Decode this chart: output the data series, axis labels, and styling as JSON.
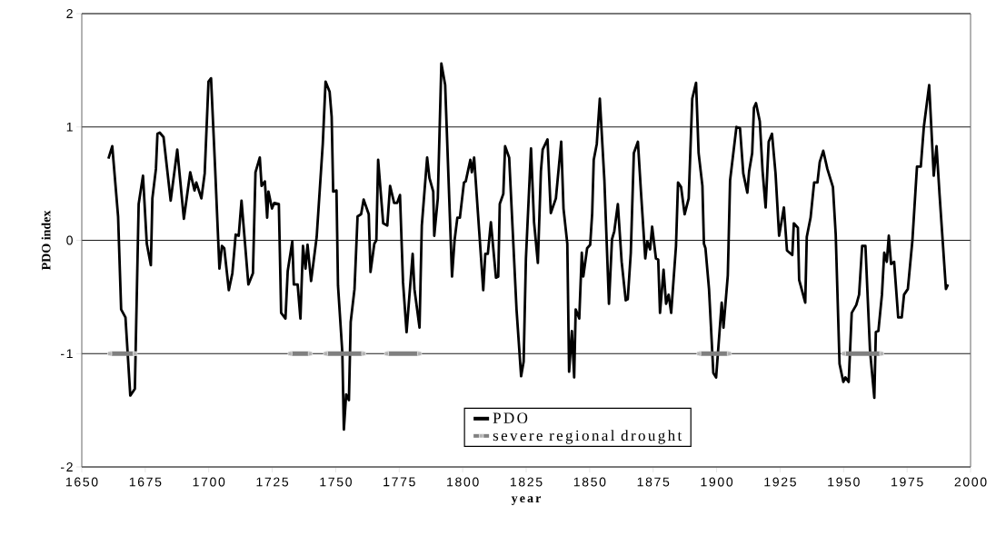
{
  "chart_data": {
    "type": "line",
    "xlabel": "year",
    "ylabel": "PDO index",
    "xlim": [
      1650,
      2000
    ],
    "ylim": [
      -2,
      2
    ],
    "xticks": [
      1650,
      1675,
      1700,
      1725,
      1750,
      1775,
      1800,
      1825,
      1850,
      1875,
      1900,
      1925,
      1950,
      1975,
      2000
    ],
    "yticks": [
      -2,
      -1,
      0,
      1,
      2
    ],
    "grid": "y",
    "legend": "bottom",
    "series": [
      {
        "name": "PDO",
        "color": "#000000",
        "x": [
          1660.5,
          1662.0,
          1664.3,
          1665.5,
          1667.2,
          1669.1,
          1670.9,
          1672.4,
          1674.1,
          1675.6,
          1677.2,
          1677.8,
          1679.2,
          1679.8,
          1680.7,
          1682.2,
          1685.0,
          1687.6,
          1690.2,
          1692.7,
          1694.4,
          1695.1,
          1697.1,
          1698.4,
          1699.9,
          1700.9,
          1702.5,
          1704.2,
          1705.2,
          1706.1,
          1707.9,
          1709.3,
          1710.6,
          1711.8,
          1712.9,
          1715.6,
          1717.4,
          1718.4,
          1720.1,
          1720.8,
          1722.1,
          1723.0,
          1723.5,
          1724.9,
          1725.8,
          1727.6,
          1728.5,
          1730.2,
          1731.1,
          1732.9,
          1733.5,
          1735.0,
          1736.1,
          1737.1,
          1738.1,
          1738.9,
          1740.3,
          1742.5,
          1744.9,
          1746.0,
          1747.6,
          1748.4,
          1749.0,
          1750.3,
          1750.9,
          1752.6,
          1753.2,
          1754.1,
          1755.2,
          1755.9,
          1757.4,
          1758.6,
          1760.0,
          1761.0,
          1763.0,
          1763.7,
          1765.2,
          1766.0,
          1766.7,
          1768.7,
          1770.3,
          1771.4,
          1773.0,
          1774.2,
          1775.3,
          1776.5,
          1777.9,
          1780.3,
          1781.0,
          1783.0,
          1783.9,
          1786.0,
          1786.9,
          1788.4,
          1788.8,
          1790.2,
          1791.6,
          1793.1,
          1795.8,
          1796.8,
          1797.9,
          1798.9,
          1800.5,
          1801.2,
          1803.0,
          1803.6,
          1804.5,
          1808.1,
          1808.9,
          1809.9,
          1811.1,
          1813.1,
          1814.0,
          1814.6,
          1816.0,
          1816.7,
          1818.3,
          1821.2,
          1823.0,
          1824.0,
          1824.9,
          1826.9,
          1828.1,
          1829.6,
          1830.8,
          1831.5,
          1833.4,
          1834.7,
          1836.7,
          1838.8,
          1839.7,
          1841.2,
          1841.9,
          1843.0,
          1843.9,
          1844.5,
          1845.9,
          1846.9,
          1847.5,
          1849.0,
          1850.2,
          1851.0,
          1851.6,
          1852.8,
          1854.0,
          1855.8,
          1857.6,
          1858.8,
          1859.7,
          1861.1,
          1862.6,
          1864.2,
          1865.0,
          1866.2,
          1867.4,
          1869.0,
          1870.2,
          1871.9,
          1872.7,
          1873.8,
          1874.6,
          1876.1,
          1877.0,
          1877.7,
          1879.1,
          1880.1,
          1881.1,
          1882.1,
          1884.0,
          1884.8,
          1886.0,
          1887.4,
          1889.0,
          1890.4,
          1891.9,
          1892.9,
          1894.4,
          1895.0,
          1895.6,
          1897.0,
          1898.7,
          1899.8,
          1902.0,
          1902.7,
          1904.4,
          1905.3,
          1907.8,
          1909.2,
          1910.5,
          1912.1,
          1912.8,
          1914.0,
          1914.7,
          1915.5,
          1917.0,
          1918.1,
          1919.3,
          1920.5,
          1921.8,
          1923.2,
          1924.6,
          1926.5,
          1927.7,
          1929.8,
          1930.4,
          1932.0,
          1932.5,
          1934.9,
          1935.5,
          1937.0,
          1938.4,
          1939.7,
          1940.6,
          1942.0,
          1943.6,
          1945.8,
          1946.9,
          1948.4,
          1949.9,
          1950.7,
          1952.0,
          1953.2,
          1955.0,
          1956.1,
          1957.3,
          1958.6,
          1960.4,
          1962.1,
          1962.7,
          1963.7,
          1965.1,
          1966.0,
          1967.0,
          1967.8,
          1968.7,
          1969.9,
          1971.5,
          1972.9,
          1973.8,
          1975.3,
          1977.1,
          1978.9,
          1980.4,
          1981.6,
          1983.7,
          1985.5,
          1986.6,
          1987.8,
          1990.3,
          1991.1
        ],
        "values": [
          0.72,
          0.83,
          0.21,
          -0.61,
          -0.68,
          -1.37,
          -1.31,
          0.32,
          0.57,
          -0.03,
          -0.22,
          0.37,
          0.63,
          0.94,
          0.95,
          0.91,
          0.35,
          0.8,
          0.19,
          0.6,
          0.44,
          0.51,
          0.37,
          0.59,
          1.4,
          1.43,
          0.64,
          -0.25,
          -0.05,
          -0.07,
          -0.44,
          -0.29,
          0.05,
          0.04,
          0.35,
          -0.39,
          -0.29,
          0.6,
          0.73,
          0.48,
          0.52,
          0.2,
          0.43,
          0.28,
          0.33,
          0.32,
          -0.64,
          -0.69,
          -0.27,
          -0.01,
          -0.39,
          -0.39,
          -0.69,
          -0.05,
          -0.25,
          -0.04,
          -0.36,
          0.03,
          0.85,
          1.4,
          1.31,
          1.09,
          0.43,
          0.44,
          -0.4,
          -0.99,
          -1.67,
          -1.36,
          -1.41,
          -0.72,
          -0.43,
          0.21,
          0.23,
          0.36,
          0.23,
          -0.28,
          -0.03,
          0,
          0.71,
          0.15,
          0.13,
          0.48,
          0.33,
          0.33,
          0.4,
          -0.37,
          -0.81,
          -0.12,
          -0.43,
          -0.77,
          0.13,
          0.73,
          0.55,
          0.43,
          0.04,
          0.37,
          1.56,
          1.37,
          -0.32,
          0,
          0.2,
          0.2,
          0.51,
          0.52,
          0.71,
          0.6,
          0.73,
          -0.44,
          -0.12,
          -0.12,
          0.16,
          -0.33,
          -0.32,
          0.32,
          0.41,
          0.83,
          0.73,
          -0.61,
          -1.2,
          -1.07,
          -0.16,
          0.81,
          0.16,
          -0.2,
          0.61,
          0.8,
          0.89,
          0.24,
          0.37,
          0.87,
          0.28,
          -0.03,
          -1.16,
          -0.8,
          -1.21,
          -0.61,
          -0.69,
          -0.11,
          -0.32,
          -0.07,
          -0.04,
          0.24,
          0.71,
          0.85,
          1.25,
          0.53,
          -0.56,
          0.01,
          0.08,
          0.32,
          -0.19,
          -0.53,
          -0.52,
          -0.11,
          0.77,
          0.87,
          0.43,
          -0.16,
          -0.01,
          -0.08,
          0.12,
          -0.16,
          -0.17,
          -0.64,
          -0.26,
          -0.56,
          -0.48,
          -0.64,
          -0.05,
          0.51,
          0.47,
          0.23,
          0.37,
          1.25,
          1.39,
          0.77,
          0.48,
          -0.03,
          -0.07,
          -0.43,
          -1.17,
          -1.21,
          -0.55,
          -0.77,
          -0.31,
          0.53,
          1.0,
          0.99,
          0.59,
          0.42,
          0.61,
          0.77,
          1.17,
          1.21,
          1.05,
          0.61,
          0.29,
          0.87,
          0.94,
          0.59,
          0.04,
          0.29,
          -0.09,
          -0.13,
          0.15,
          0.11,
          -0.35,
          -0.55,
          0.03,
          0.2,
          0.51,
          0.51,
          0.69,
          0.79,
          0.63,
          0.47,
          0.05,
          -1.09,
          -1.25,
          -1.21,
          -1.25,
          -0.64,
          -0.57,
          -0.48,
          -0.05,
          -0.05,
          -0.97,
          -1.39,
          -0.81,
          -0.8,
          -0.48,
          -0.11,
          -0.19,
          0.04,
          -0.21,
          -0.19,
          -0.68,
          -0.68,
          -0.48,
          -0.43,
          0,
          0.65,
          0.65,
          1.0,
          1.37,
          0.57,
          0.83,
          0.4,
          -0.43,
          -0.39
        ]
      },
      {
        "name": "severe regional drought",
        "color": "#808080",
        "marker": "square",
        "x": [
          1661,
          1671,
          null,
          1732,
          1740,
          null,
          1746,
          1761,
          null,
          1770,
          1783,
          null,
          1893,
          1905,
          null,
          1950,
          1965
        ],
        "values": [
          -1,
          -1,
          null,
          -1,
          -1,
          null,
          -1,
          -1,
          null,
          -1,
          -1,
          null,
          -1,
          -1,
          null,
          -1,
          -1
        ]
      }
    ]
  }
}
